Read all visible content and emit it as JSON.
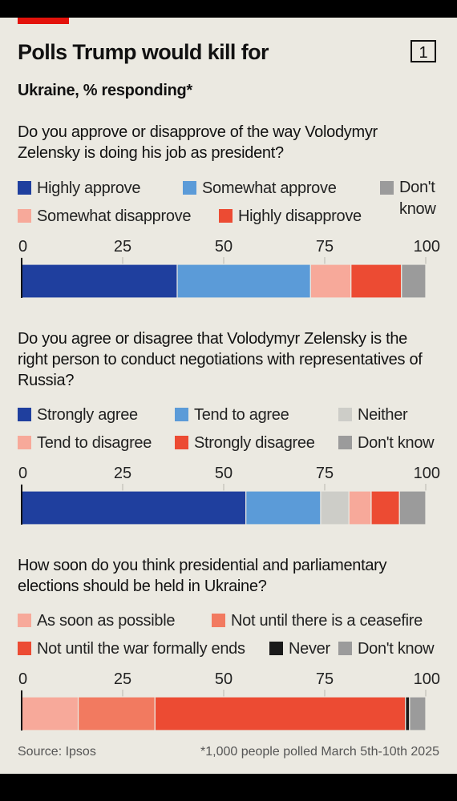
{
  "title": "Polls Trump would kill for",
  "chart_number": "1",
  "subtitle": "Ukraine, % responding*",
  "source": "Source: Ipsos",
  "footnote": "*1,000 people polled March 5th-10th 2025",
  "chart_data": [
    {
      "type": "bar",
      "orientation": "horizontal-stacked",
      "question": "Do you approve or disapprove of the way Volodymyr Zelensky is doing his job as president?",
      "xlim": [
        0,
        100
      ],
      "ticks": [
        "0",
        "25",
        "50",
        "75",
        "100"
      ],
      "series": [
        {
          "name": "Highly approve",
          "value": 38.5,
          "color": "#1f3f9e"
        },
        {
          "name": "Somewhat approve",
          "value": 33,
          "color": "#5b9bd8"
        },
        {
          "name": "Somewhat disapprove",
          "value": 10,
          "color": "#f7a99a"
        },
        {
          "name": "Highly disapprove",
          "value": 12.5,
          "color": "#ec4b33"
        },
        {
          "name": "Don't know",
          "value": 6,
          "color": "#9b9b9b"
        }
      ]
    },
    {
      "type": "bar",
      "orientation": "horizontal-stacked",
      "question": "Do you agree or disagree that Volodymyr Zelensky is the right person to conduct negotiations with representatives of Russia?",
      "xlim": [
        0,
        100
      ],
      "ticks": [
        "0",
        "25",
        "50",
        "75",
        "100"
      ],
      "series": [
        {
          "name": "Strongly agree",
          "value": 55.5,
          "color": "#1f3f9e"
        },
        {
          "name": "Tend to agree",
          "value": 18.5,
          "color": "#5b9bd8"
        },
        {
          "name": "Neither",
          "value": 7,
          "color": "#cdcdc8"
        },
        {
          "name": "Tend to disagree",
          "value": 5.5,
          "color": "#f7a99a"
        },
        {
          "name": "Strongly disagree",
          "value": 7,
          "color": "#ec4b33"
        },
        {
          "name": "Don't know",
          "value": 6.5,
          "color": "#9b9b9b"
        }
      ]
    },
    {
      "type": "bar",
      "orientation": "horizontal-stacked",
      "question": "How soon do you think presidential and parliamentary elections should be held in Ukraine?",
      "xlim": [
        0,
        100
      ],
      "ticks": [
        "0",
        "25",
        "50",
        "75",
        "100"
      ],
      "series": [
        {
          "name": "As soon as possible",
          "value": 14,
          "color": "#f7a99a"
        },
        {
          "name": "Not until there is a ceasefire",
          "value": 19,
          "color": "#f27a60"
        },
        {
          "name": "Not until the war formally ends",
          "value": 62,
          "color": "#ec4b33"
        },
        {
          "name": "Never",
          "value": 1,
          "color": "#1a1a1a"
        },
        {
          "name": "Don't know",
          "value": 4,
          "color": "#9b9b9b"
        }
      ]
    }
  ]
}
